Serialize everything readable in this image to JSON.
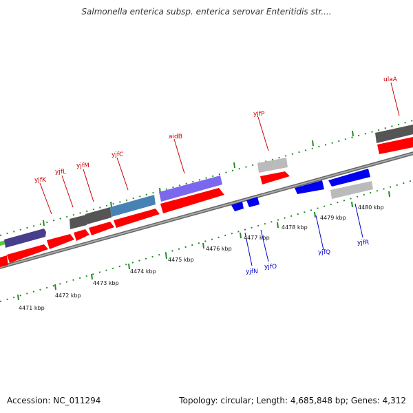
{
  "title": "Salmonella enterica subsp. enterica serovar Enteritidis str....",
  "footer": {
    "accession": "Accession: NC_011294",
    "summary": "Topology: circular; Length: 4,685,848 bp; Genes: 4,312"
  },
  "colors": {
    "forward_label": "#cc0000",
    "reverse_label": "#0000cc",
    "backbone": "#888888",
    "ticks": "#228b22",
    "red_gene": "#ff0000",
    "blue_gene": "#0000ee",
    "dark_gray_gene": "#555555",
    "light_gray_gene": "#bbbbbb",
    "slate_gene": "#483d8b",
    "medium_slate_gene": "#7b68ee",
    "steel_gene": "#4682b4"
  },
  "scale_labels": [
    "4471 kbp",
    "4472 kbp",
    "4473 kbp",
    "4474 kbp",
    "4475 kbp",
    "4476 kbp",
    "4477 kbp",
    "4478 kbp",
    "4479 kbp",
    "4480 kbp"
  ],
  "forward_gene_labels": [
    "yjfK",
    "yjfL",
    "yjfM",
    "yjfC",
    "aidB",
    "yjfP",
    "ulaA"
  ],
  "reverse_gene_labels": [
    "yjfN",
    "yjfO",
    "yjfQ",
    "yjfR"
  ]
}
